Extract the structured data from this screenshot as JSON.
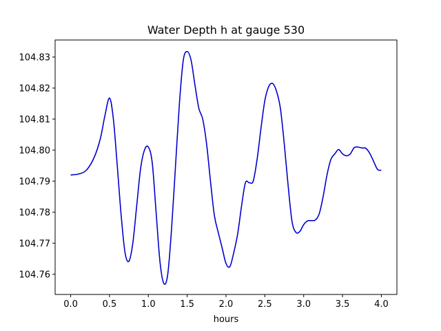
{
  "chart_data": {
    "type": "line",
    "title": "Water Depth h at gauge 530",
    "xlabel": "hours",
    "ylabel": "",
    "xlim": [
      -0.2,
      4.2
    ],
    "ylim": [
      104.7535,
      104.8355
    ],
    "xticks": [
      0.0,
      0.5,
      1.0,
      1.5,
      2.0,
      2.5,
      3.0,
      3.5,
      4.0
    ],
    "xtick_labels": [
      "0.0",
      "0.5",
      "1.0",
      "1.5",
      "2.0",
      "2.5",
      "3.0",
      "3.5",
      "4.0"
    ],
    "yticks": [
      104.76,
      104.77,
      104.78,
      104.79,
      104.8,
      104.81,
      104.82,
      104.83
    ],
    "ytick_labels": [
      "104.76",
      "104.77",
      "104.78",
      "104.79",
      "104.80",
      "104.81",
      "104.82",
      "104.83"
    ],
    "grid": false,
    "series": [
      {
        "color": "#0000cc",
        "x": [
          0.0,
          0.1,
          0.2,
          0.3,
          0.38,
          0.44,
          0.5,
          0.55,
          0.6,
          0.65,
          0.7,
          0.75,
          0.8,
          0.85,
          0.9,
          0.95,
          1.0,
          1.05,
          1.1,
          1.15,
          1.2,
          1.25,
          1.3,
          1.35,
          1.4,
          1.45,
          1.5,
          1.55,
          1.6,
          1.65,
          1.7,
          1.75,
          1.8,
          1.85,
          1.9,
          1.95,
          2.0,
          2.05,
          2.1,
          2.15,
          2.2,
          2.25,
          2.3,
          2.35,
          2.4,
          2.45,
          2.5,
          2.55,
          2.6,
          2.65,
          2.7,
          2.75,
          2.8,
          2.85,
          2.9,
          2.95,
          3.0,
          3.05,
          3.1,
          3.15,
          3.2,
          3.25,
          3.3,
          3.35,
          3.4,
          3.45,
          3.5,
          3.55,
          3.6,
          3.65,
          3.7,
          3.75,
          3.8,
          3.85,
          3.9,
          3.95,
          4.0
        ],
        "y": [
          104.792,
          104.7923,
          104.7935,
          104.7975,
          104.8035,
          104.811,
          104.8168,
          104.81,
          104.795,
          104.779,
          104.767,
          104.7642,
          104.77,
          104.782,
          104.794,
          104.8,
          104.801,
          104.796,
          104.78,
          104.764,
          104.757,
          104.76,
          104.775,
          104.795,
          104.815,
          104.829,
          104.8318,
          104.829,
          104.821,
          104.8135,
          104.81,
          104.802,
          104.79,
          104.779,
          104.7735,
          104.7685,
          104.7635,
          104.7625,
          104.767,
          104.773,
          104.782,
          104.7895,
          104.7895,
          104.79,
          104.797,
          104.807,
          104.816,
          104.8205,
          104.8215,
          104.819,
          104.8135,
          104.802,
          104.7885,
          104.777,
          104.7735,
          104.7738,
          104.776,
          104.7772,
          104.7773,
          104.7775,
          104.7795,
          104.785,
          104.792,
          104.797,
          104.7988,
          104.8002,
          104.7988,
          104.7982,
          104.7988,
          104.8008,
          104.801,
          104.8007,
          104.8006,
          104.799,
          104.7964,
          104.7938,
          104.7935
        ]
      }
    ]
  }
}
